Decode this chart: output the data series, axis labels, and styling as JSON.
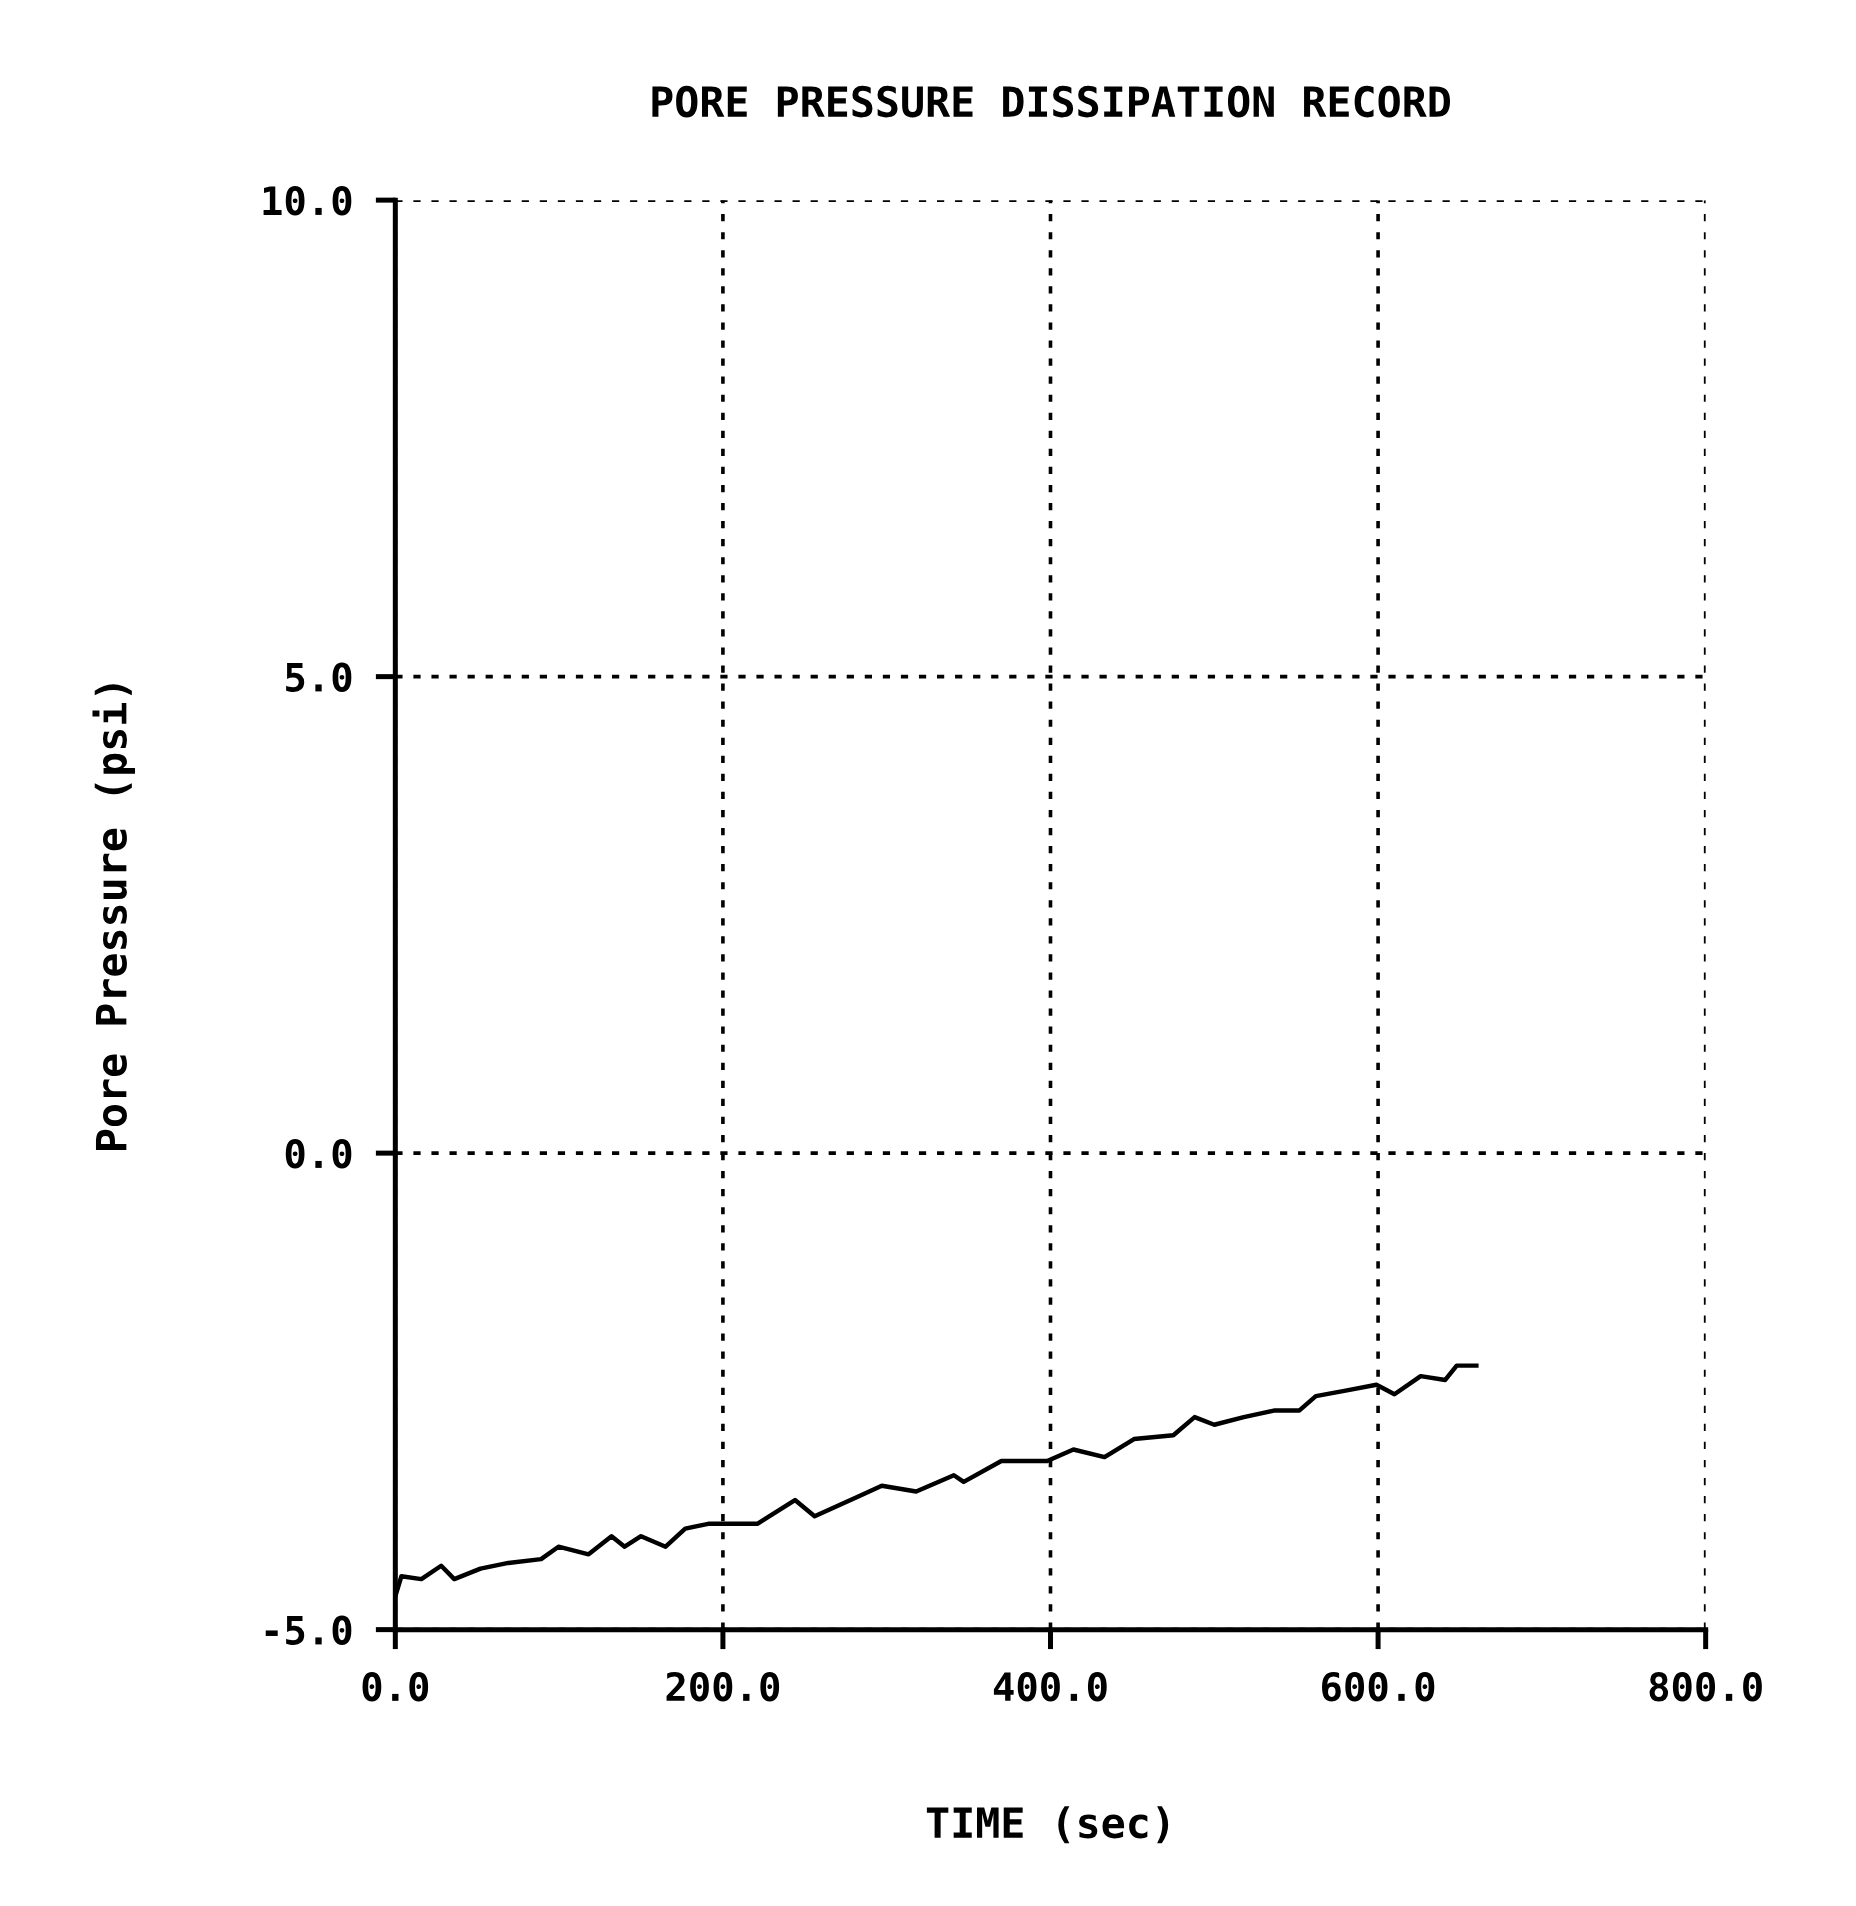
{
  "chart_data": {
    "type": "line",
    "title": "PORE PRESSURE DISSIPATION RECORD",
    "xlabel": "TIME (sec)",
    "ylabel": "Pore Pressure (psi)",
    "x": [
      0,
      3.7,
      15.9,
      28,
      36,
      52,
      69,
      89,
      99.6,
      118,
      132,
      140,
      150,
      165,
      177,
      191,
      221,
      244,
      256,
      283,
      297,
      318,
      341,
      347,
      370,
      398,
      414,
      433,
      451,
      475,
      488,
      500,
      518,
      537,
      552,
      562,
      581,
      599,
      610,
      626,
      641,
      648,
      660
    ],
    "series": [
      {
        "color": "#000000",
        "values": [
          -4.65,
          -4.44,
          -4.47,
          -4.33,
          -4.47,
          -4.36,
          -4.3,
          -4.26,
          -4.13,
          -4.21,
          -4.02,
          -4.13,
          -4.02,
          -4.13,
          -3.94,
          -3.89,
          -3.89,
          -3.64,
          -3.81,
          -3.6,
          -3.49,
          -3.55,
          -3.38,
          -3.45,
          -3.23,
          -3.23,
          -3.11,
          -3.19,
          -3.0,
          -2.96,
          -2.77,
          -2.85,
          -2.77,
          -2.7,
          -2.7,
          -2.55,
          -2.49,
          -2.43,
          -2.53,
          -2.34,
          -2.38,
          -2.23,
          -2.23
        ]
      }
    ],
    "xlim": [
      0,
      800
    ],
    "ylim": [
      -5,
      10
    ],
    "xticks": [
      {
        "value": 0,
        "label": "0.0"
      },
      {
        "value": 200,
        "label": "200.0"
      },
      {
        "value": 400,
        "label": "400.0"
      },
      {
        "value": 600,
        "label": "600.0"
      },
      {
        "value": 800,
        "label": "800.0"
      }
    ],
    "yticks": [
      {
        "value": -5,
        "label": "-5.0"
      },
      {
        "value": 0,
        "label": "0.0"
      },
      {
        "value": 5,
        "label": "5.0"
      },
      {
        "value": 10,
        "label": "10.0"
      }
    ],
    "grid": true,
    "marker": "none",
    "line_style": "solid"
  }
}
